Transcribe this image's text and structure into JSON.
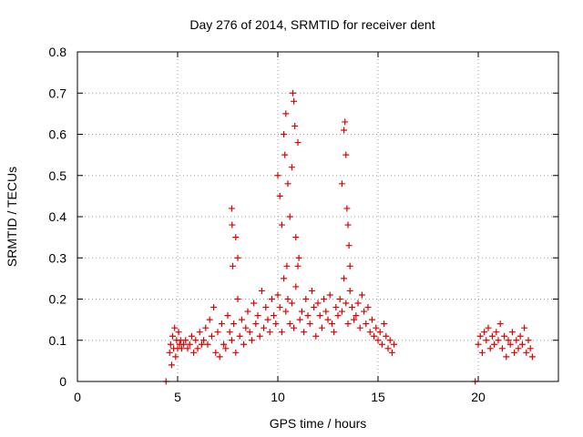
{
  "chart_data": {
    "type": "scatter",
    "title": "Day 276 of 2014, SRMTID for receiver dent",
    "xlabel": "GPS time / hours",
    "ylabel": "SRMTID / TECUs",
    "xlim": [
      0,
      24
    ],
    "ylim": [
      0,
      0.8
    ],
    "xticks": [
      0,
      5,
      10,
      15,
      20
    ],
    "yticks": [
      0,
      0.1,
      0.2,
      0.3,
      0.4,
      0.5,
      0.6,
      0.7,
      0.8
    ],
    "xtick_labels": [
      "0",
      "5",
      "10",
      "15",
      "20"
    ],
    "ytick_labels": [
      "0",
      "0.1",
      "0.2",
      "0.3",
      "0.4",
      "0.5",
      "0.6",
      "0.7",
      "0.8"
    ],
    "grid": true,
    "marker": "+",
    "color": "#e00000",
    "series": [
      {
        "name": "SRMTID",
        "x": [
          4.42,
          4.6,
          4.65,
          4.7,
          4.75,
          4.8,
          4.85,
          4.9,
          4.95,
          5.0,
          5.05,
          5.1,
          5.15,
          5.2,
          5.3,
          5.4,
          5.5,
          5.6,
          5.7,
          5.8,
          5.9,
          6.0,
          6.1,
          6.2,
          6.3,
          6.4,
          6.5,
          6.6,
          6.7,
          6.8,
          6.9,
          7.0,
          7.1,
          7.2,
          7.3,
          7.4,
          7.5,
          7.6,
          7.7,
          7.75,
          7.8,
          7.9,
          8.0,
          8.1,
          8.2,
          8.3,
          8.4,
          8.5,
          8.6,
          8.7,
          8.8,
          8.9,
          9.0,
          9.1,
          9.2,
          9.3,
          9.4,
          9.5,
          9.6,
          9.7,
          9.8,
          9.9,
          10.0,
          10.1,
          10.2,
          10.3,
          10.4,
          10.45,
          10.5,
          10.6,
          10.7,
          10.8,
          10.9,
          11.0,
          11.1,
          11.2,
          11.3,
          11.4,
          11.5,
          11.6,
          11.7,
          11.8,
          11.9,
          12.0,
          12.1,
          12.2,
          12.3,
          12.4,
          12.5,
          12.6,
          12.7,
          12.8,
          12.9,
          13.0,
          13.1,
          13.2,
          13.3,
          13.4,
          13.5,
          13.6,
          13.7,
          13.8,
          13.9,
          14.0,
          14.1,
          14.2,
          14.3,
          14.4,
          14.5,
          14.6,
          14.7,
          14.8,
          14.9,
          15.0,
          15.1,
          15.2,
          15.3,
          15.4,
          15.5,
          15.6,
          15.7,
          15.8,
          19.85,
          20.0,
          20.1,
          20.2,
          20.3,
          20.4,
          20.5,
          20.6,
          20.7,
          20.8,
          20.9,
          21.0,
          21.1,
          21.2,
          21.3,
          21.4,
          21.5,
          21.6,
          21.7,
          21.8,
          21.9,
          22.0,
          22.1,
          22.2,
          22.3,
          22.4,
          22.5,
          22.6,
          22.7,
          7.7,
          7.72,
          7.9,
          8.0,
          10.0,
          10.1,
          10.2,
          10.3,
          10.35,
          10.4,
          10.5,
          10.6,
          10.7,
          10.75,
          10.8,
          10.85,
          10.9,
          11.0,
          11.05,
          13.2,
          13.3,
          13.35,
          13.4,
          13.45,
          13.5,
          13.55,
          13.6
        ],
        "y": [
          0.0,
          0.07,
          0.09,
          0.04,
          0.11,
          0.08,
          0.13,
          0.06,
          0.1,
          0.08,
          0.12,
          0.09,
          0.1,
          0.08,
          0.09,
          0.1,
          0.08,
          0.09,
          0.11,
          0.07,
          0.1,
          0.08,
          0.12,
          0.09,
          0.1,
          0.13,
          0.09,
          0.15,
          0.11,
          0.18,
          0.07,
          0.12,
          0.06,
          0.14,
          0.09,
          0.08,
          0.16,
          0.12,
          0.1,
          0.28,
          0.14,
          0.07,
          0.2,
          0.11,
          0.15,
          0.09,
          0.13,
          0.17,
          0.12,
          0.1,
          0.19,
          0.14,
          0.16,
          0.11,
          0.22,
          0.13,
          0.18,
          0.15,
          0.12,
          0.2,
          0.16,
          0.14,
          0.21,
          0.18,
          0.12,
          0.25,
          0.17,
          0.28,
          0.2,
          0.14,
          0.19,
          0.13,
          0.23,
          0.28,
          0.15,
          0.17,
          0.12,
          0.2,
          0.16,
          0.14,
          0.22,
          0.18,
          0.11,
          0.19,
          0.16,
          0.13,
          0.2,
          0.17,
          0.15,
          0.21,
          0.14,
          0.12,
          0.18,
          0.16,
          0.2,
          0.17,
          0.25,
          0.19,
          0.14,
          0.22,
          0.18,
          0.15,
          0.16,
          0.19,
          0.13,
          0.21,
          0.17,
          0.14,
          0.18,
          0.12,
          0.15,
          0.11,
          0.13,
          0.1,
          0.12,
          0.09,
          0.14,
          0.11,
          0.08,
          0.1,
          0.07,
          0.09,
          0.0,
          0.09,
          0.11,
          0.07,
          0.12,
          0.1,
          0.13,
          0.08,
          0.11,
          0.09,
          0.12,
          0.1,
          0.14,
          0.08,
          0.11,
          0.06,
          0.1,
          0.09,
          0.12,
          0.07,
          0.1,
          0.08,
          0.11,
          0.09,
          0.13,
          0.07,
          0.1,
          0.08,
          0.06,
          0.42,
          0.38,
          0.35,
          0.3,
          0.5,
          0.45,
          0.38,
          0.6,
          0.55,
          0.65,
          0.48,
          0.4,
          0.52,
          0.7,
          0.68,
          0.62,
          0.35,
          0.58,
          0.3,
          0.48,
          0.61,
          0.63,
          0.55,
          0.42,
          0.38,
          0.33,
          0.28
        ]
      }
    ]
  }
}
